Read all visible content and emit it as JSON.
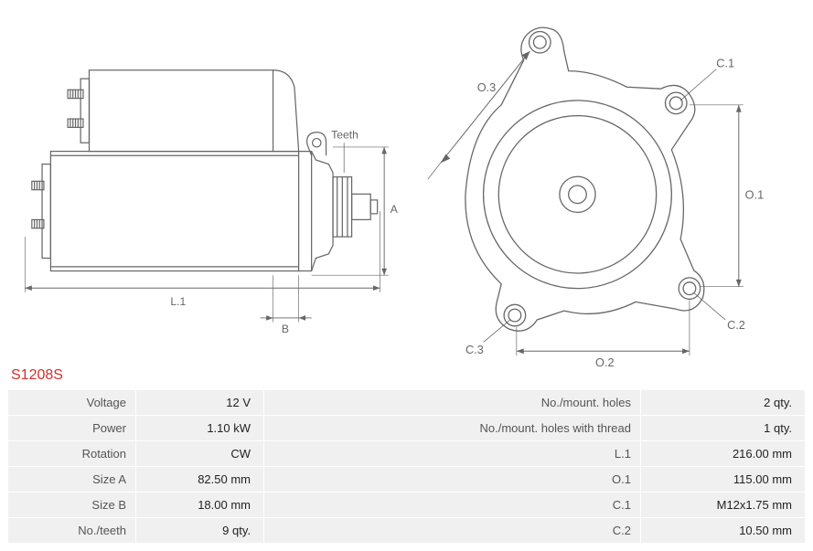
{
  "part_code": "S1208S",
  "diagram_labels": {
    "teeth": "Teeth",
    "L1": "L.1",
    "A": "A",
    "B": "B",
    "O1": "O.1",
    "O2": "O.2",
    "O3": "O.3",
    "C1": "C.1",
    "C2": "C.2",
    "C3": "C.3"
  },
  "specs_left": [
    {
      "label": "Voltage",
      "value": "12 V"
    },
    {
      "label": "Power",
      "value": "1.10 kW"
    },
    {
      "label": "Rotation",
      "value": "CW"
    },
    {
      "label": "Size A",
      "value": "82.50 mm"
    },
    {
      "label": "Size B",
      "value": "18.00 mm"
    },
    {
      "label": "No./teeth",
      "value": "9 qty."
    }
  ],
  "specs_right": [
    {
      "label": "No./mount. holes",
      "value": "2 qty."
    },
    {
      "label": "No./mount. holes with thread",
      "value": "1 qty."
    },
    {
      "label": "L.1",
      "value": "216.00 mm"
    },
    {
      "label": "O.1",
      "value": "115.00 mm"
    },
    {
      "label": "C.1",
      "value": "M12x1.75 mm"
    },
    {
      "label": "C.2",
      "value": "10.50 mm"
    }
  ],
  "style": {
    "stroke": "#666666",
    "stroke_width": 1.3,
    "part_code_color": "#d32f2f",
    "table_bg": "#f0f0f0",
    "table_border": "#ffffff",
    "font_size_label": 13,
    "font_size_code": 16,
    "background": "#ffffff"
  }
}
